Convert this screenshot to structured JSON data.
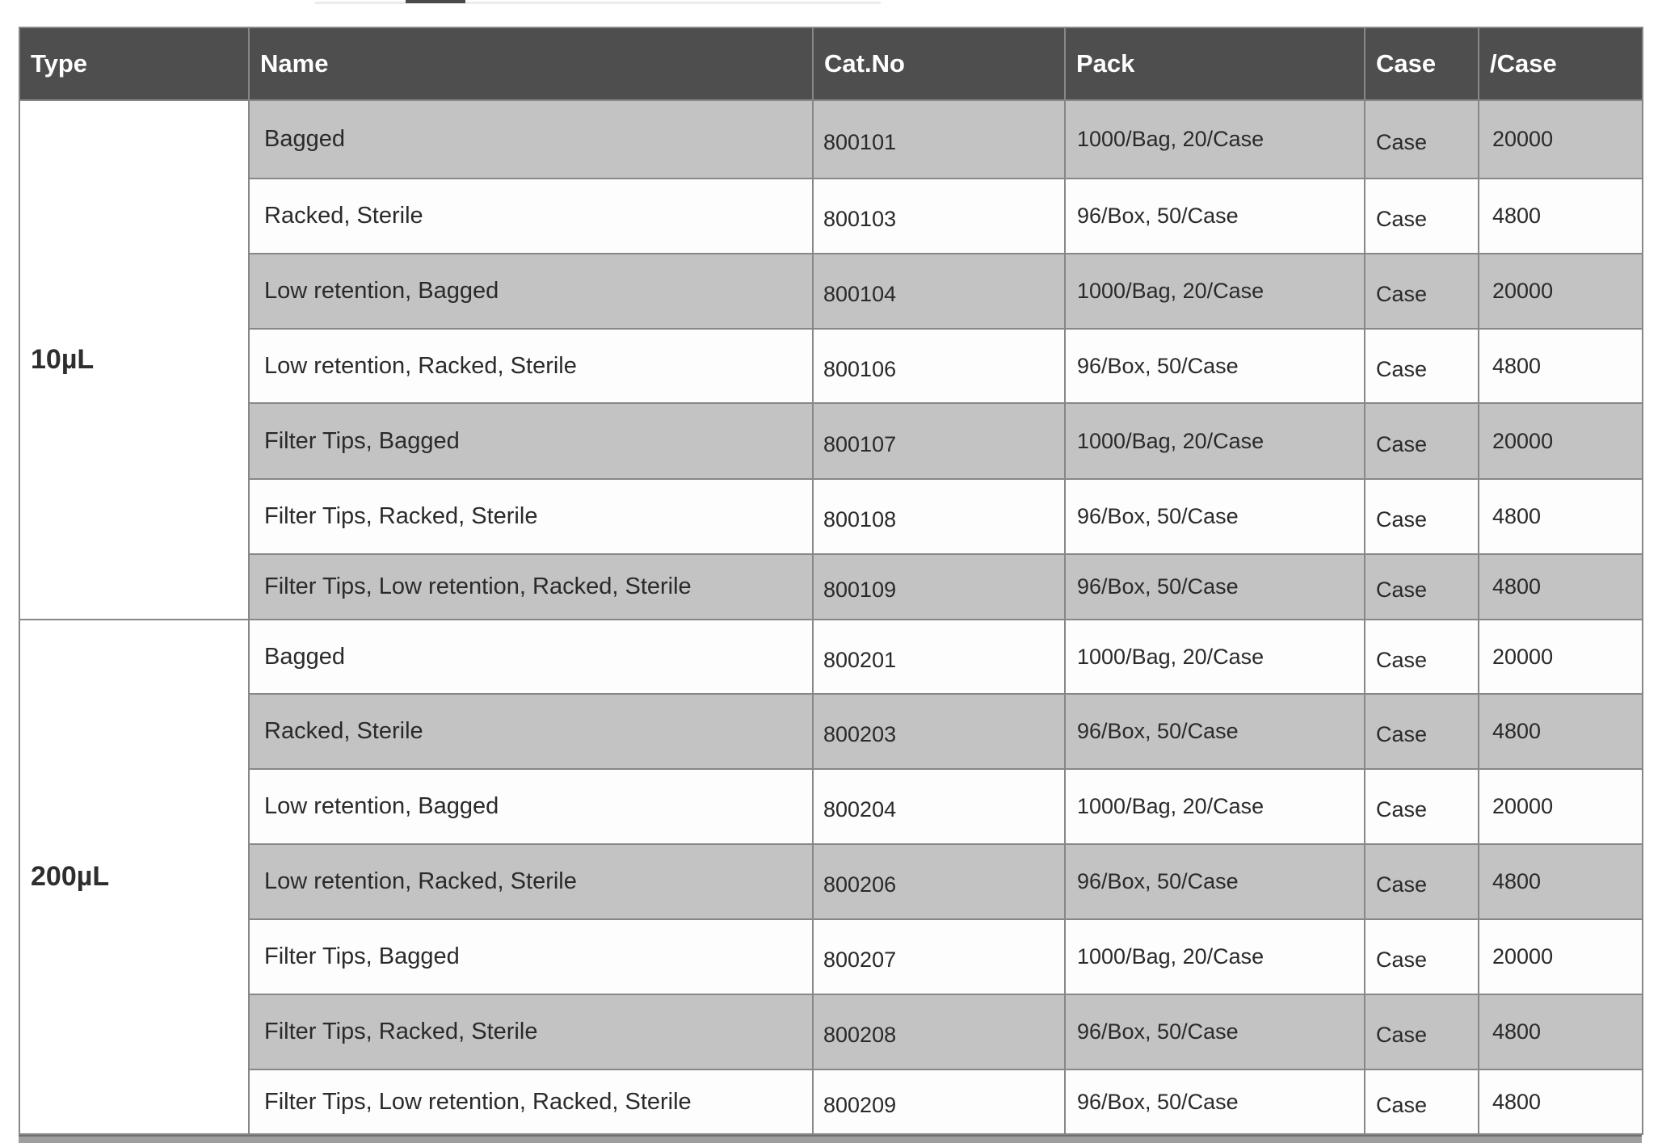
{
  "table": {
    "headers": [
      {
        "key": "type",
        "label": "Type"
      },
      {
        "key": "name",
        "label": "Name"
      },
      {
        "key": "cat_no",
        "label": "Cat.No"
      },
      {
        "key": "pack",
        "label": "Pack"
      },
      {
        "key": "case",
        "label": "Case"
      },
      {
        "key": "per_case",
        "label": "/Case"
      }
    ],
    "groups": [
      {
        "type_label": "10µL",
        "rows": [
          {
            "name": "Bagged",
            "cat_no": "800101",
            "pack": "1000/Bag, 20/Case",
            "case_unit": "Case",
            "per_case": "20000"
          },
          {
            "name": "Racked, Sterile",
            "cat_no": "800103",
            "pack": "96/Box, 50/Case",
            "case_unit": "Case",
            "per_case": "4800"
          },
          {
            "name": "Low retention, Bagged",
            "cat_no": "800104",
            "pack": "1000/Bag, 20/Case",
            "case_unit": "Case",
            "per_case": "20000"
          },
          {
            "name": "Low retention, Racked, Sterile",
            "cat_no": "800106",
            "pack": "96/Box, 50/Case",
            "case_unit": "Case",
            "per_case": "4800"
          },
          {
            "name": "Filter Tips, Bagged",
            "cat_no": "800107",
            "pack": "1000/Bag, 20/Case",
            "case_unit": "Case",
            "per_case": "20000"
          },
          {
            "name": "Filter Tips, Racked, Sterile",
            "cat_no": "800108",
            "pack": "96/Box, 50/Case",
            "case_unit": "Case",
            "per_case": "4800"
          },
          {
            "name": "Filter Tips, Low retention, Racked, Sterile",
            "cat_no": "800109",
            "pack": "96/Box, 50/Case",
            "case_unit": "Case",
            "per_case": "4800"
          }
        ]
      },
      {
        "type_label": "200µL",
        "rows": [
          {
            "name": "Bagged",
            "cat_no": "800201",
            "pack": "1000/Bag, 20/Case",
            "case_unit": "Case",
            "per_case": "20000"
          },
          {
            "name": "Racked, Sterile",
            "cat_no": "800203",
            "pack": "96/Box, 50/Case",
            "case_unit": "Case",
            "per_case": "4800"
          },
          {
            "name": "Low retention, Bagged",
            "cat_no": "800204",
            "pack": "1000/Bag, 20/Case",
            "case_unit": "Case",
            "per_case": "20000"
          },
          {
            "name": "Low retention, Racked, Sterile",
            "cat_no": "800206",
            "pack": "96/Box, 50/Case",
            "case_unit": "Case",
            "per_case": "4800"
          },
          {
            "name": "Filter Tips, Bagged",
            "cat_no": "800207",
            "pack": "1000/Bag, 20/Case",
            "case_unit": "Case",
            "per_case": "20000"
          },
          {
            "name": "Filter Tips, Racked, Sterile",
            "cat_no": "800208",
            "pack": "96/Box, 50/Case",
            "case_unit": "Case",
            "per_case": "4800"
          },
          {
            "name": "Filter Tips, Low retention, Racked, Sterile",
            "cat_no": "800209",
            "pack": "96/Box, 50/Case",
            "case_unit": "Case",
            "per_case": "4800"
          }
        ]
      }
    ]
  },
  "colors": {
    "header_bg": "#4e4e4e",
    "header_fg": "#ffffff",
    "alt_row_bg": "#c3c3c3",
    "body_fg": "#2a2a2a",
    "border": "#878787"
  }
}
